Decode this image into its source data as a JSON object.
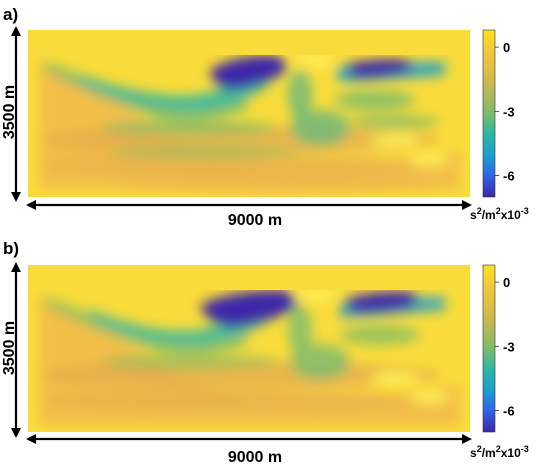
{
  "chart_data": [
    {
      "type": "heatmap",
      "panel_label": "a)",
      "ylabel": "3500 m",
      "xlabel": "9000 m",
      "colorbar": {
        "ticks": [
          0,
          -3,
          -6
        ],
        "tick_labels": [
          "0",
          "-3",
          "-6"
        ],
        "range": [
          -7,
          0.8
        ]
      }
    },
    {
      "type": "heatmap",
      "panel_label": "b)",
      "ylabel": "3500 m",
      "xlabel": "9000 m",
      "colorbar": {
        "ticks": [
          0,
          -3,
          -6
        ],
        "tick_labels": [
          "0",
          "-3",
          "-6"
        ],
        "range": [
          -7,
          0.8
        ]
      }
    }
  ],
  "colorbar_unit": {
    "base": "s",
    "sup1": "2",
    "mid": "/m",
    "sup2": "2",
    "tail": "x10",
    "sup3": "-3"
  },
  "colors": {
    "colormap": [
      "#3e26a8",
      "#2f64e7",
      "#1d9ecd",
      "#2eb7a4",
      "#8dbe55",
      "#e3b92d",
      "#f9e41c"
    ],
    "background_field": "#f9dc3b",
    "arrow": "#000000"
  }
}
